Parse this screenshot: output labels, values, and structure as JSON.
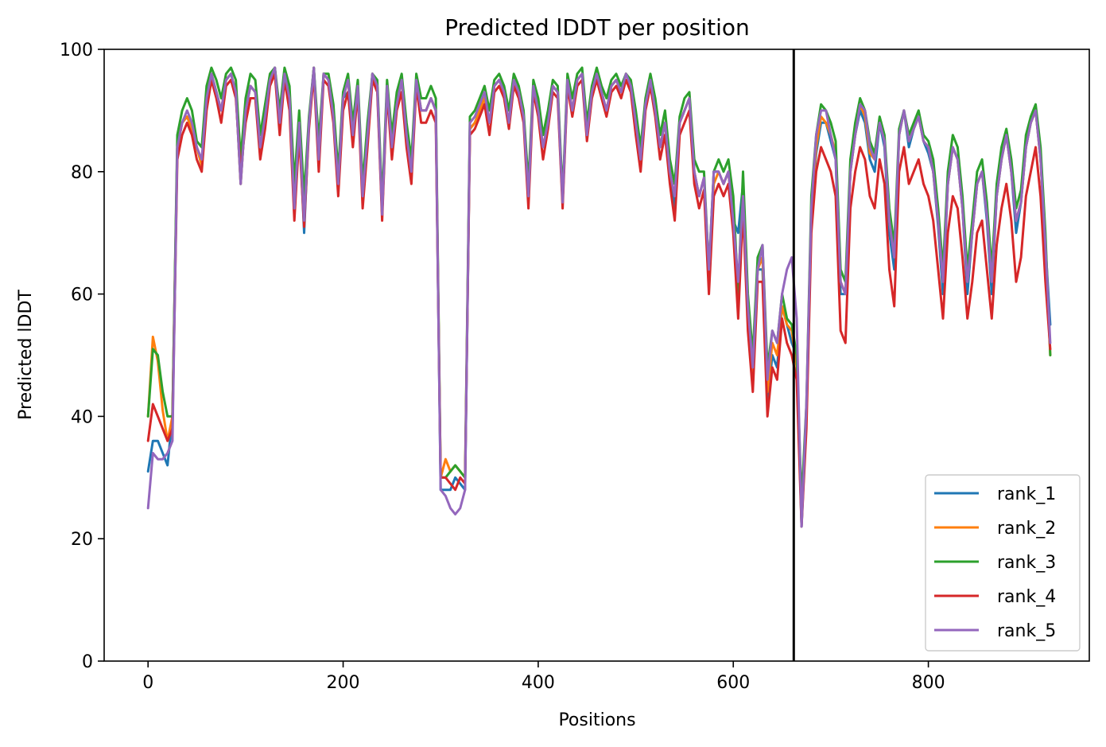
{
  "chart_data": {
    "type": "line",
    "title": "Predicted lDDT per position",
    "xlabel": "Positions",
    "ylabel": "Predicted lDDT",
    "xlim": [
      -45,
      965
    ],
    "ylim": [
      0,
      100
    ],
    "xticks": [
      0,
      200,
      400,
      600,
      800
    ],
    "yticks": [
      0,
      20,
      40,
      60,
      80,
      100
    ],
    "grid": false,
    "legend_position": "lower-right",
    "vline": 662,
    "x_step": 5,
    "series": [
      {
        "name": "rank_1",
        "color": "#1f77b4",
        "values": [
          31,
          36,
          36,
          34,
          32,
          40,
          84,
          88,
          89,
          87,
          84,
          81,
          92,
          96,
          93,
          90,
          95,
          96,
          93,
          78,
          90,
          94,
          93,
          84,
          89,
          95,
          97,
          88,
          96,
          92,
          73,
          88,
          70,
          88,
          97,
          82,
          96,
          95,
          89,
          78,
          92,
          93,
          86,
          94,
          76,
          86,
          96,
          94,
          73,
          94,
          84,
          91,
          93,
          86,
          80,
          95,
          90,
          90,
          92,
          90,
          28,
          28,
          28,
          30,
          29,
          28,
          87,
          88,
          90,
          92,
          88,
          94,
          95,
          93,
          88,
          95,
          93,
          89,
          76,
          94,
          90,
          84,
          88,
          94,
          93,
          75,
          95,
          90,
          95,
          96,
          86,
          93,
          96,
          93,
          90,
          94,
          95,
          93,
          96,
          94,
          88,
          82,
          91,
          95,
          90,
          84,
          88,
          80,
          74,
          88,
          90,
          92,
          80,
          76,
          79,
          62,
          80,
          80,
          78,
          80,
          72,
          70,
          78,
          56,
          45,
          64,
          64,
          42,
          50,
          48,
          58,
          55,
          52,
          50,
          22,
          40,
          73,
          83,
          88,
          88,
          85,
          82,
          60,
          60,
          80,
          86,
          90,
          88,
          82,
          80,
          88,
          84,
          70,
          64,
          86,
          90,
          84,
          87,
          89,
          85,
          83,
          80,
          71,
          60,
          78,
          84,
          82,
          74,
          60,
          70,
          78,
          80,
          72,
          60,
          76,
          82,
          86,
          80,
          70,
          75,
          84,
          88,
          90,
          82,
          68,
          55
        ]
      },
      {
        "name": "rank_2",
        "color": "#ff7f0e",
        "values": [
          40,
          53,
          49,
          41,
          36,
          40,
          84,
          88,
          89,
          87,
          84,
          81,
          92,
          96,
          93,
          90,
          95,
          96,
          93,
          78,
          90,
          94,
          93,
          84,
          89,
          95,
          97,
          88,
          96,
          92,
          73,
          88,
          74,
          88,
          97,
          82,
          96,
          95,
          89,
          78,
          92,
          95,
          86,
          94,
          76,
          86,
          96,
          94,
          73,
          94,
          84,
          91,
          95,
          86,
          80,
          95,
          90,
          90,
          92,
          90,
          30,
          33,
          31,
          32,
          31,
          30,
          87,
          88,
          90,
          92,
          88,
          94,
          95,
          93,
          88,
          95,
          93,
          89,
          76,
          94,
          90,
          84,
          88,
          94,
          93,
          75,
          95,
          90,
          95,
          96,
          86,
          93,
          96,
          93,
          90,
          94,
          95,
          93,
          96,
          94,
          88,
          82,
          91,
          95,
          90,
          84,
          88,
          80,
          76,
          88,
          90,
          92,
          80,
          76,
          79,
          62,
          78,
          80,
          78,
          80,
          72,
          58,
          76,
          58,
          47,
          64,
          66,
          44,
          52,
          50,
          58,
          55,
          54,
          48,
          24,
          40,
          74,
          84,
          89,
          88,
          86,
          83,
          62,
          60,
          80,
          86,
          91,
          89,
          83,
          82,
          88,
          85,
          72,
          66,
          86,
          90,
          85,
          87,
          89,
          85,
          84,
          80,
          72,
          62,
          78,
          84,
          82,
          74,
          62,
          70,
          78,
          80,
          73,
          62,
          76,
          82,
          86,
          80,
          72,
          75,
          84,
          88,
          90,
          82,
          68,
          50
        ]
      },
      {
        "name": "rank_3",
        "color": "#2ca02c",
        "values": [
          40,
          51,
          50,
          44,
          40,
          40,
          86,
          90,
          92,
          90,
          85,
          84,
          94,
          97,
          95,
          92,
          96,
          97,
          95,
          82,
          92,
          96,
          95,
          86,
          91,
          96,
          97,
          90,
          97,
          94,
          78,
          90,
          76,
          89,
          97,
          85,
          96,
          96,
          91,
          80,
          93,
          96,
          88,
          95,
          78,
          88,
          96,
          95,
          75,
          95,
          86,
          93,
          96,
          88,
          82,
          96,
          92,
          92,
          94,
          92,
          30,
          30,
          31,
          32,
          31,
          30,
          89,
          90,
          92,
          94,
          90,
          95,
          96,
          94,
          90,
          96,
          94,
          90,
          78,
          95,
          92,
          86,
          90,
          95,
          94,
          76,
          96,
          92,
          96,
          97,
          88,
          94,
          97,
          94,
          92,
          95,
          96,
          94,
          96,
          95,
          90,
          84,
          92,
          96,
          92,
          86,
          90,
          82,
          78,
          89,
          92,
          93,
          82,
          80,
          80,
          64,
          80,
          82,
          80,
          82,
          76,
          60,
          80,
          60,
          50,
          66,
          68,
          48,
          54,
          52,
          60,
          56,
          55,
          50,
          26,
          42,
          76,
          86,
          91,
          90,
          88,
          85,
          64,
          62,
          82,
          88,
          92,
          90,
          85,
          83,
          89,
          86,
          74,
          68,
          87,
          90,
          86,
          88,
          90,
          86,
          85,
          82,
          74,
          64,
          80,
          86,
          84,
          76,
          64,
          72,
          80,
          82,
          75,
          64,
          78,
          84,
          87,
          82,
          74,
          77,
          86,
          89,
          91,
          84,
          70,
          50
        ]
      },
      {
        "name": "rank_4",
        "color": "#d62728",
        "values": [
          36,
          42,
          40,
          38,
          36,
          38,
          82,
          86,
          88,
          86,
          82,
          80,
          90,
          95,
          92,
          88,
          94,
          95,
          92,
          80,
          88,
          92,
          92,
          82,
          87,
          94,
          96,
          86,
          95,
          90,
          72,
          86,
          71,
          87,
          96,
          80,
          95,
          94,
          88,
          76,
          90,
          93,
          84,
          93,
          74,
          84,
          95,
          93,
          72,
          93,
          82,
          90,
          93,
          84,
          78,
          94,
          88,
          88,
          90,
          88,
          30,
          30,
          29,
          28,
          30,
          29,
          86,
          87,
          89,
          91,
          86,
          93,
          94,
          92,
          87,
          94,
          92,
          88,
          74,
          93,
          89,
          82,
          87,
          93,
          92,
          74,
          94,
          89,
          94,
          95,
          85,
          92,
          95,
          92,
          89,
          93,
          94,
          92,
          95,
          93,
          86,
          80,
          90,
          94,
          89,
          82,
          86,
          78,
          72,
          86,
          88,
          90,
          78,
          74,
          77,
          60,
          76,
          78,
          76,
          78,
          70,
          56,
          74,
          54,
          44,
          62,
          62,
          40,
          48,
          46,
          56,
          52,
          50,
          46,
          22,
          38,
          70,
          80,
          84,
          82,
          80,
          76,
          54,
          52,
          74,
          80,
          84,
          82,
          76,
          74,
          82,
          78,
          64,
          58,
          80,
          84,
          78,
          80,
          82,
          78,
          76,
          72,
          64,
          56,
          70,
          76,
          74,
          66,
          56,
          62,
          70,
          72,
          64,
          56,
          68,
          74,
          78,
          72,
          62,
          66,
          76,
          80,
          84,
          76,
          62,
          51
        ]
      },
      {
        "name": "rank_5",
        "color": "#9467bd",
        "values": [
          25,
          34,
          33,
          33,
          34,
          36,
          84,
          88,
          90,
          88,
          84,
          82,
          92,
          96,
          93,
          90,
          95,
          96,
          93,
          78,
          90,
          94,
          93,
          84,
          89,
          95,
          97,
          88,
          96,
          92,
          74,
          88,
          72,
          88,
          97,
          82,
          96,
          95,
          89,
          78,
          92,
          95,
          86,
          94,
          76,
          86,
          96,
          94,
          73,
          94,
          84,
          91,
          95,
          86,
          80,
          95,
          90,
          90,
          92,
          90,
          28,
          27,
          25,
          24,
          25,
          28,
          88,
          89,
          91,
          93,
          88,
          94,
          95,
          93,
          88,
          95,
          93,
          89,
          76,
          94,
          90,
          84,
          88,
          94,
          93,
          75,
          95,
          90,
          95,
          96,
          86,
          93,
          96,
          93,
          90,
          94,
          95,
          93,
          96,
          94,
          88,
          82,
          91,
          95,
          90,
          84,
          88,
          80,
          76,
          88,
          90,
          92,
          80,
          76,
          79,
          64,
          80,
          80,
          78,
          80,
          72,
          62,
          76,
          58,
          48,
          64,
          68,
          46,
          54,
          52,
          60,
          64,
          66,
          56,
          22,
          42,
          74,
          86,
          90,
          90,
          86,
          82,
          62,
          60,
          80,
          86,
          91,
          90,
          84,
          82,
          88,
          85,
          72,
          66,
          86,
          90,
          85,
          87,
          89,
          85,
          84,
          80,
          72,
          62,
          78,
          84,
          82,
          74,
          62,
          70,
          78,
          80,
          73,
          62,
          76,
          82,
          86,
          80,
          72,
          75,
          84,
          88,
          90,
          82,
          68,
          52
        ]
      }
    ]
  }
}
